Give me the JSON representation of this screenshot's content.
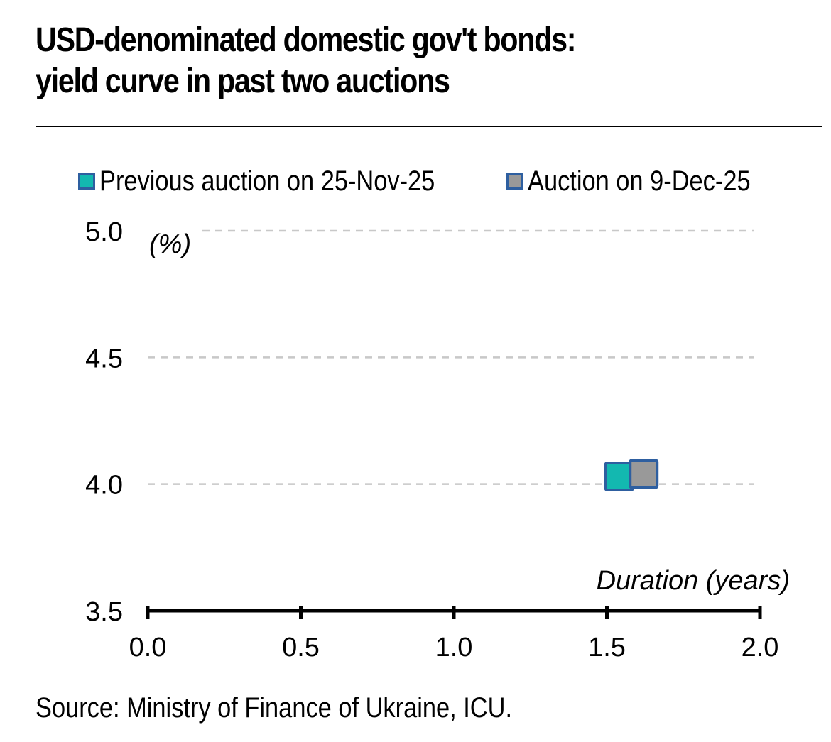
{
  "title_line1": "USD-denominated domestic gov't bonds:",
  "title_line2": "yield curve in past two auctions",
  "source": "Source: Ministry of Finance of Ukraine, ICU.",
  "colors": {
    "teal": "#13b8b0",
    "grey": "#999999",
    "border": "#2e5fa0",
    "grid": "#c8c8c8"
  },
  "chart_data": {
    "type": "scatter",
    "title": "USD-denominated domestic gov't bonds: yield curve in past two auctions",
    "xlabel": "Duration (years)",
    "ylabel": "(%)",
    "xlim": [
      0.0,
      2.0
    ],
    "ylim": [
      3.5,
      5.0
    ],
    "x_ticks": [
      "0.0",
      "0.5",
      "1.0",
      "1.5",
      "2.0"
    ],
    "y_ticks": [
      "3.5",
      "4.0",
      "4.5",
      "5.0"
    ],
    "grid": "horizontal dashed",
    "legend_position": "top",
    "series": [
      {
        "name": "Previous auction on 25-Nov-25",
        "color": "#13b8b0",
        "points": [
          {
            "x": 1.54,
            "y": 4.03
          }
        ]
      },
      {
        "name": "Auction on 9-Dec-25",
        "color": "#999999",
        "points": [
          {
            "x": 1.62,
            "y": 4.04
          }
        ]
      }
    ]
  }
}
